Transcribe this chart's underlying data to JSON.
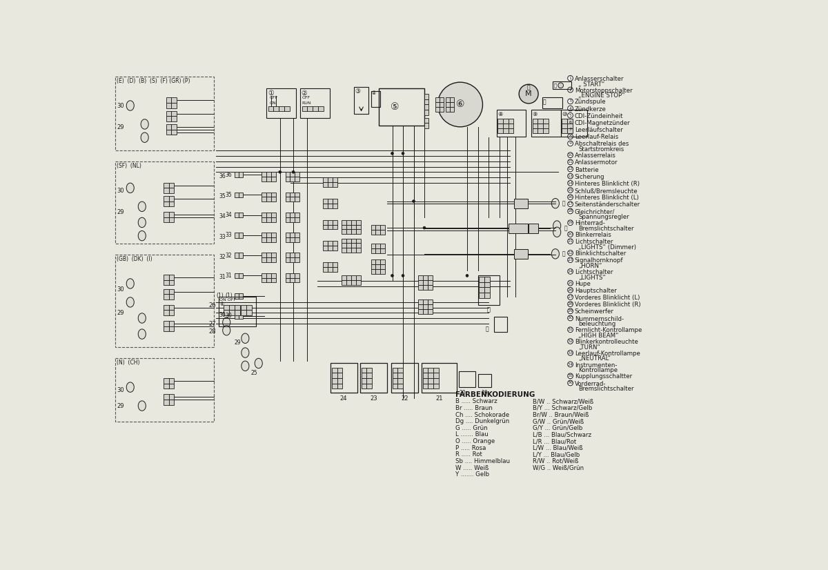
{
  "bg_color": "#e8e8df",
  "line_color": "#1a1a1a",
  "numbered_items": [
    [
      "1",
      "Anlasserschalter",
      "„ START“"
    ],
    [
      "2",
      "Motorstoppschalter",
      "„ENGINE STOP“"
    ],
    [
      "3",
      "Zündspule",
      ""
    ],
    [
      "4",
      "Zündkerze",
      ""
    ],
    [
      "5",
      "CDI-Zündeinheit",
      ""
    ],
    [
      "6",
      "CDI-Magnetzünder",
      ""
    ],
    [
      "7",
      "Leerläufschalter",
      ""
    ],
    [
      "8",
      "Leerlauf-Relais",
      ""
    ],
    [
      "9",
      "Abschaltrelais des",
      "Startstromkreis"
    ],
    [
      "10",
      "Anlasserrelais",
      ""
    ],
    [
      "11",
      "Anlassermotor",
      ""
    ],
    [
      "12",
      "Batterie",
      ""
    ],
    [
      "13",
      "Sicherung",
      ""
    ],
    [
      "14",
      "Hinteres Blinklicht (R)",
      ""
    ],
    [
      "15",
      "Schluß/Bremsleuchte",
      ""
    ],
    [
      "16",
      "Hinteres Blinklicht (L)",
      ""
    ],
    [
      "17",
      "Seitenständerschalter",
      ""
    ],
    [
      "18",
      "Gleichrichter/",
      "Spannungsregler"
    ],
    [
      "19",
      "Hinterrad-",
      "Bremslichtschalter"
    ],
    [
      "20",
      "Blinkerrelais",
      ""
    ],
    [
      "21",
      "Lichtschalter",
      "„LIGHTS“ (Dimmer)"
    ],
    [
      "22",
      "Blinklichtschalter",
      ""
    ],
    [
      "23",
      "Signalhornknopf",
      "„HORN“"
    ],
    [
      "24",
      "Lichtschalter",
      "„LIGHTS“"
    ],
    [
      "25",
      "Hupe",
      ""
    ],
    [
      "26",
      "Hauptschalter",
      ""
    ],
    [
      "27",
      "Vorderes Blinklicht (L)",
      ""
    ],
    [
      "28",
      "Vorderes Blinklicht (R)",
      ""
    ],
    [
      "29",
      "Scheinwerfer",
      ""
    ],
    [
      "30",
      "Nummernschild-",
      "beleuchtung"
    ],
    [
      "31",
      "Fernlicht-Kontrollampe",
      "„HIGH BEAM“"
    ],
    [
      "32",
      "Blinkerkontrolleuchte",
      "„TURN“"
    ],
    [
      "33",
      "Leerlauf-Kontrollampe",
      "„NEUTRAL“"
    ],
    [
      "34",
      "Instrumenten-",
      "Kontrollampe"
    ],
    [
      "35",
      "Kupplungsschaltter",
      ""
    ],
    [
      "36",
      "Vorderrad-",
      "Bremslichtschalter"
    ]
  ],
  "farbenkodierung_title": "FARBENKODIERUNG",
  "legend_left": [
    "B ..... Schwarz",
    "Br ..... Braun",
    "Ch .... Schokorade",
    "Dg .... Dunkelgrün",
    "G ..... Grün",
    "L ....... Blau",
    "O ..... Orange",
    "P ..... Rosa",
    "R ..... Rot",
    "Sb .... Himmelblau",
    "W ..... Weiß",
    "Y ....... Gelb"
  ],
  "legend_right": [
    "B/W .. Schwarz/Weiß",
    "B/Y ... Schwarz/Gelb",
    "Br/W .. Braun/Weiß",
    "G/W .. Grün/Weiß",
    "G/Y ... Grün/Gelb",
    "L/B ... Blau/Schwarz",
    "L/R ... Blau/Rot",
    "L/W ... Blau/Weiß",
    "L/Y ... Blau/Gelb",
    "R/W .. Rot/Weiß",
    "W/G .. Weiß/Grün"
  ]
}
